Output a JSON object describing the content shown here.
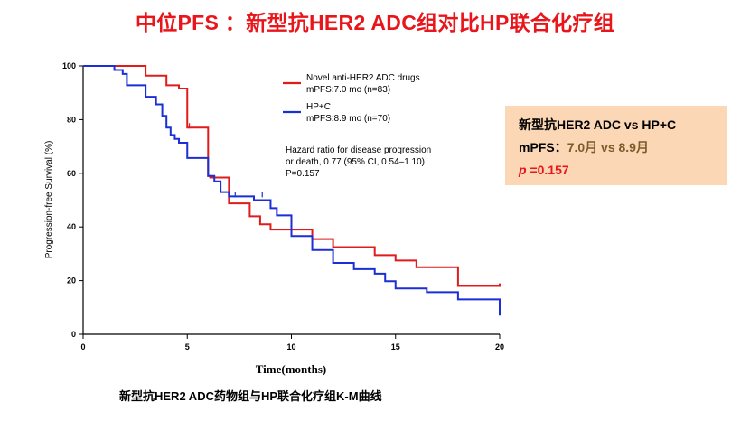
{
  "slide": {
    "title": "中位PFS ：新型抗HER2 ADC组对比HP联合化疗组",
    "caption": "新型抗HER2 ADC药物组与HP联合化疗组K-M曲线"
  },
  "summary_box": {
    "line1": "新型抗HER2 ADC vs HP+C",
    "line2_label": "mPFS：",
    "line2_values": "7.0月 vs 8.9月",
    "line3_p": "p",
    "line3_value": " =0.157"
  },
  "chart_data": {
    "type": "line",
    "subtype": "kaplan-meier-step",
    "xlabel": "Time(months)",
    "ylabel": "Progression-free Survival (%)",
    "xlim": [
      0,
      20
    ],
    "ylim": [
      0,
      100
    ],
    "xticks": [
      0,
      5,
      10,
      15,
      20
    ],
    "yticks": [
      0,
      20,
      40,
      60,
      80,
      100
    ],
    "grid": false,
    "legend_position": "top-center",
    "annotation": [
      "Hazard ratio for disease progression",
      "or death, 0.77 (95% CI, 0.54–1.10)",
      "P=0.157"
    ],
    "series": [
      {
        "name": "Novel anti-HER2 ADC drugs",
        "stat": "mPFS:7.0 mo (n=83)",
        "color": "#e01b1b",
        "x": [
          0,
          3,
          4,
          4.6,
          5,
          6,
          6.1,
          7,
          8,
          8.5,
          9,
          11,
          12,
          14,
          15,
          16,
          18,
          20
        ],
        "y": [
          100,
          96.4,
          92.8,
          91.6,
          77,
          59,
          58.4,
          48.8,
          44,
          41,
          39,
          35.5,
          32.5,
          29.5,
          27.5,
          25,
          18,
          19
        ]
      },
      {
        "name": "HP+C",
        "stat": "mPFS:8.9 mo (n=70)",
        "color": "#1b2fd6",
        "x": [
          0,
          1.5,
          1.9,
          2.1,
          3,
          3.5,
          3.8,
          4,
          4.2,
          4.4,
          4.6,
          5,
          6,
          6.3,
          6.6,
          7,
          8.2,
          9,
          9.3,
          10,
          11,
          12,
          13,
          14,
          14.5,
          15,
          16.5,
          18,
          20
        ],
        "y": [
          100,
          98.5,
          97,
          92.8,
          88.5,
          85.7,
          81.4,
          77,
          74.3,
          72.8,
          71.4,
          65.7,
          59,
          57,
          53,
          51.4,
          50,
          47,
          44.3,
          36.6,
          31.4,
          26.6,
          24.3,
          22.6,
          19.8,
          17.1,
          15.7,
          13,
          7
        ]
      }
    ],
    "censor_marks": [
      {
        "series": 0,
        "x": 5.1,
        "y": 77
      },
      {
        "series": 1,
        "x": 7.3,
        "y": 51.4
      },
      {
        "series": 1,
        "x": 8.6,
        "y": 51.4
      }
    ]
  }
}
